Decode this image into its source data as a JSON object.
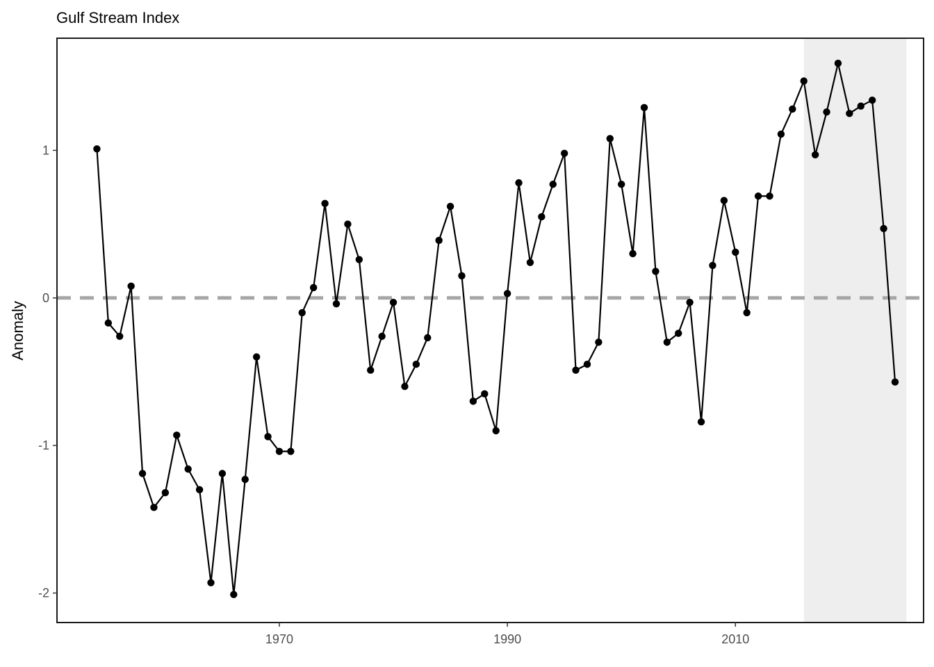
{
  "chart_data": {
    "type": "line",
    "title": "Gulf Stream Index",
    "xlabel": "",
    "ylabel": "Anomaly",
    "xlim": [
      1950.5,
      2026.5
    ],
    "ylim": [
      -2.2,
      1.76
    ],
    "x_ticks": [
      1970,
      1990,
      2010
    ],
    "x_tick_labels": [
      "1970",
      "1990",
      "2010"
    ],
    "y_ticks": [
      -2,
      -1,
      0,
      1
    ],
    "y_tick_labels": [
      "-2",
      "-1",
      "0",
      "1"
    ],
    "reference_line": {
      "y": 0,
      "style": "dashed",
      "color": "#a6a6a6"
    },
    "highlight_region": {
      "x_start": 2016,
      "x_end": 2025,
      "color": "#eeeeee"
    },
    "grid": false,
    "legend": "none",
    "series": [
      {
        "color": "#000000",
        "points": [
          [
            1954,
            1.01
          ],
          [
            1955,
            -0.17
          ],
          [
            1956,
            -0.26
          ],
          [
            1957,
            0.08
          ],
          [
            1958,
            -1.19
          ],
          [
            1959,
            -1.42
          ],
          [
            1960,
            -1.32
          ],
          [
            1961,
            -0.93
          ],
          [
            1962,
            -1.16
          ],
          [
            1963,
            -1.3
          ],
          [
            1964,
            -1.93
          ],
          [
            1965,
            -1.19
          ],
          [
            1966,
            -2.01
          ],
          [
            1967,
            -1.23
          ],
          [
            1968,
            -0.4
          ],
          [
            1969,
            -0.94
          ],
          [
            1970,
            -1.04
          ],
          [
            1971,
            -1.04
          ],
          [
            1972,
            -0.1
          ],
          [
            1973,
            0.07
          ],
          [
            1974,
            0.64
          ],
          [
            1975,
            -0.04
          ],
          [
            1976,
            0.5
          ],
          [
            1977,
            0.26
          ],
          [
            1978,
            -0.49
          ],
          [
            1979,
            -0.26
          ],
          [
            1980,
            -0.03
          ],
          [
            1981,
            -0.6
          ],
          [
            1982,
            -0.45
          ],
          [
            1983,
            -0.27
          ],
          [
            1984,
            0.39
          ],
          [
            1985,
            0.62
          ],
          [
            1986,
            0.15
          ],
          [
            1987,
            -0.7
          ],
          [
            1988,
            -0.65
          ],
          [
            1989,
            -0.9
          ],
          [
            1990,
            0.03
          ],
          [
            1991,
            0.78
          ],
          [
            1992,
            0.24
          ],
          [
            1993,
            0.55
          ],
          [
            1994,
            0.77
          ],
          [
            1995,
            0.98
          ],
          [
            1996,
            -0.49
          ],
          [
            1997,
            -0.45
          ],
          [
            1998,
            -0.3
          ],
          [
            1999,
            1.08
          ],
          [
            2000,
            0.77
          ],
          [
            2001,
            0.3
          ],
          [
            2002,
            1.29
          ],
          [
            2003,
            0.18
          ],
          [
            2004,
            -0.3
          ],
          [
            2005,
            -0.24
          ],
          [
            2006,
            -0.03
          ],
          [
            2007,
            -0.84
          ],
          [
            2008,
            0.22
          ],
          [
            2009,
            0.66
          ],
          [
            2010,
            0.31
          ],
          [
            2011,
            -0.1
          ],
          [
            2012,
            0.69
          ],
          [
            2013,
            0.69
          ],
          [
            2014,
            1.11
          ],
          [
            2015,
            1.28
          ],
          [
            2016,
            1.47
          ],
          [
            2017,
            0.97
          ],
          [
            2018,
            1.26
          ],
          [
            2019,
            1.59
          ],
          [
            2020,
            1.25
          ],
          [
            2021,
            1.3
          ],
          [
            2022,
            1.34
          ],
          [
            2023,
            0.47
          ],
          [
            2024,
            -0.57
          ]
        ]
      }
    ]
  }
}
